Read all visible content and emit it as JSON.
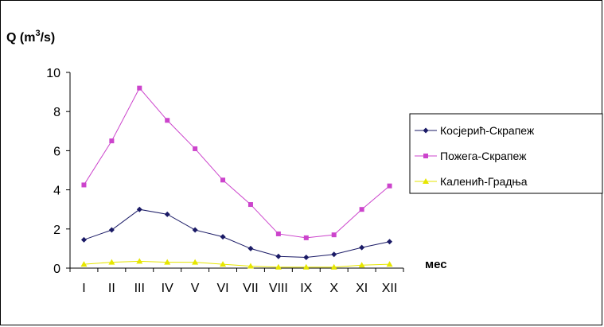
{
  "chart_data": {
    "type": "line",
    "ylabel_main": "Q (m",
    "ylabel_sup": "3",
    "ylabel_tail": "/s)",
    "xlabel": "мес",
    "categories": [
      "I",
      "II",
      "III",
      "IV",
      "V",
      "VI",
      "VII",
      "VIII",
      "IX",
      "X",
      "XI",
      "XII"
    ],
    "yticks": [
      "0",
      "2",
      "4",
      "6",
      "8",
      "10"
    ],
    "ylim": [
      0,
      10
    ],
    "grid": false,
    "legend_position": "right",
    "series": [
      {
        "name": "Косјерић-Скрапеж",
        "color": "#1a1a66",
        "marker": "diamond",
        "values": [
          1.45,
          1.95,
          3.0,
          2.75,
          1.95,
          1.6,
          1.0,
          0.6,
          0.55,
          0.7,
          1.05,
          1.35
        ]
      },
      {
        "name": "Пожега-Скрапеж",
        "color": "#cc44cc",
        "marker": "square",
        "values": [
          4.25,
          6.5,
          9.2,
          7.55,
          6.1,
          4.5,
          3.25,
          1.75,
          1.55,
          1.7,
          3.0,
          4.2
        ]
      },
      {
        "name": "Каленић-Градња",
        "color": "#e6e600",
        "marker": "triangle",
        "values": [
          0.2,
          0.3,
          0.35,
          0.3,
          0.3,
          0.2,
          0.1,
          0.05,
          0.05,
          0.05,
          0.15,
          0.2
        ]
      }
    ]
  }
}
